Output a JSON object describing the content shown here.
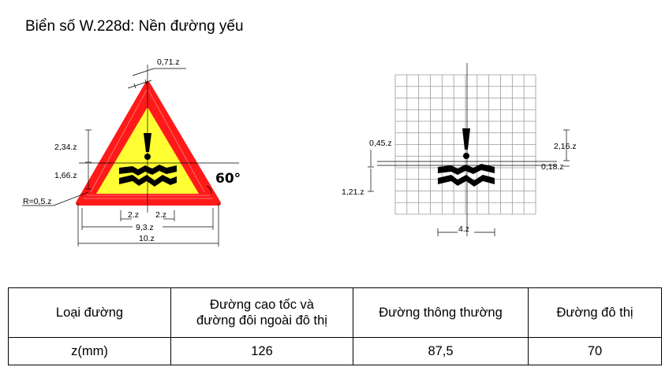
{
  "title": "Biển số W.228d: Nền đường yếu",
  "left_diagram": {
    "dims": {
      "apex": "0,71.z",
      "h1": "2,34.z",
      "h2": "1,66.z",
      "radius": "R=0,5.z",
      "angle": "60°",
      "w_left": "2.z",
      "w_right": "2.z",
      "inner_width": "9,3.z",
      "outer_width": "10.z"
    }
  },
  "right_diagram": {
    "dims": {
      "left_top": "0,45.z",
      "left_bottom": "1,21.z",
      "right_top": "2,16.z",
      "right_bottom": "0,18.z",
      "width": "4.z"
    }
  },
  "table": {
    "header": [
      "Loại đường",
      "Đường cao tốc và\nđường đôi ngoài đô thị",
      "Đường thông thường",
      "Đường đô thị"
    ],
    "row": [
      "z(mm)",
      "126",
      "87,5",
      "70"
    ]
  },
  "colors": {
    "border": "#ff1a1a",
    "fill": "#ffff33",
    "symbol": "#000000"
  }
}
